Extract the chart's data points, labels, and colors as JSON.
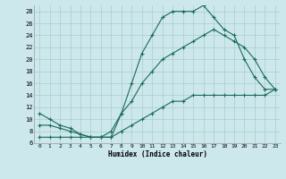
{
  "xlabel": "Humidex (Indice chaleur)",
  "bg_color": "#cce8ec",
  "grid_color": "#aacccc",
  "line_color": "#1a6b5a",
  "xlim": [
    -0.5,
    23.5
  ],
  "ylim": [
    6,
    29
  ],
  "xticks": [
    0,
    1,
    2,
    3,
    4,
    5,
    6,
    7,
    8,
    9,
    10,
    11,
    12,
    13,
    14,
    15,
    16,
    17,
    18,
    19,
    20,
    21,
    22,
    23
  ],
  "yticks": [
    6,
    8,
    10,
    12,
    14,
    16,
    18,
    20,
    22,
    24,
    26,
    28
  ],
  "line1_x": [
    0,
    1,
    2,
    3,
    4,
    5,
    6,
    7,
    8,
    9,
    10,
    11,
    12,
    13,
    14,
    15,
    16,
    17,
    18,
    19,
    20,
    21,
    22,
    23
  ],
  "line1_y": [
    11,
    10,
    9,
    8.5,
    7.5,
    7,
    7,
    7,
    11,
    16,
    21,
    24,
    27,
    28,
    28,
    28,
    29,
    27,
    25,
    24,
    20,
    17,
    15,
    15
  ],
  "line2_x": [
    0,
    1,
    2,
    3,
    4,
    5,
    6,
    7,
    8,
    9,
    10,
    11,
    12,
    13,
    14,
    15,
    16,
    17,
    18,
    19,
    20,
    21,
    22,
    23
  ],
  "line2_y": [
    9,
    9,
    8.5,
    8,
    7.5,
    7,
    7,
    8,
    11,
    13,
    16,
    18,
    20,
    21,
    22,
    23,
    24,
    25,
    24,
    23,
    22,
    20,
    17,
    15
  ],
  "line3_x": [
    0,
    1,
    2,
    3,
    4,
    5,
    6,
    7,
    8,
    9,
    10,
    11,
    12,
    13,
    14,
    15,
    16,
    17,
    18,
    19,
    20,
    21,
    22,
    23
  ],
  "line3_y": [
    7,
    7,
    7,
    7,
    7,
    7,
    7,
    7,
    8,
    9,
    10,
    11,
    12,
    13,
    13,
    14,
    14,
    14,
    14,
    14,
    14,
    14,
    14,
    15
  ]
}
